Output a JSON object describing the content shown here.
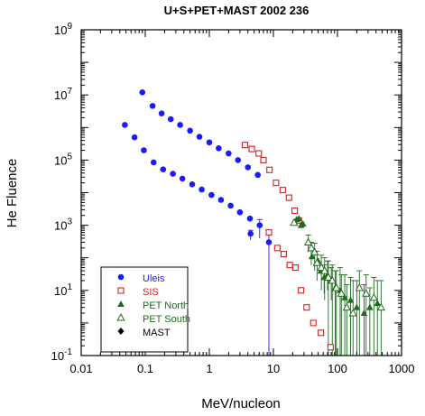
{
  "chart_data": {
    "type": "scatter",
    "title": "U+S+PET+MAST 2002 236",
    "xlabel": "MeV/nucleon",
    "ylabel": "He Fluence",
    "xscale": "log",
    "yscale": "log",
    "xlim": [
      0.01,
      1000
    ],
    "ylim": [
      0.1,
      1000000000
    ],
    "x_ticks": [
      {
        "v": 0.01,
        "label": "0.01"
      },
      {
        "v": 0.1,
        "label": "0.1"
      },
      {
        "v": 1,
        "label": "1"
      },
      {
        "v": 10,
        "label": "10"
      },
      {
        "v": 100,
        "label": "100"
      },
      {
        "v": 1000,
        "label": "1000"
      }
    ],
    "y_ticks": [
      {
        "v": 0.1,
        "base": "10",
        "exp": "-1"
      },
      {
        "v": 10,
        "base": "10",
        "exp": "1"
      },
      {
        "v": 1000,
        "base": "10",
        "exp": "3"
      },
      {
        "v": 100000,
        "base": "10",
        "exp": "5"
      },
      {
        "v": 10000000,
        "base": "10",
        "exp": "7"
      },
      {
        "v": 1000000000,
        "base": "10",
        "exp": "9"
      }
    ],
    "legend_position": "bottom-left",
    "series": [
      {
        "name": "Uleis",
        "color": "#1a1aff",
        "marker": "filled-circle",
        "points": [
          {
            "x": 0.09,
            "y": 12000000
          },
          {
            "x": 0.13,
            "y": 4600000
          },
          {
            "x": 0.18,
            "y": 2700000
          },
          {
            "x": 0.25,
            "y": 1800000
          },
          {
            "x": 0.35,
            "y": 1200000
          },
          {
            "x": 0.5,
            "y": 800000
          },
          {
            "x": 0.7,
            "y": 520000
          },
          {
            "x": 1.0,
            "y": 350000
          },
          {
            "x": 1.4,
            "y": 230000
          },
          {
            "x": 2.0,
            "y": 160000
          },
          {
            "x": 2.8,
            "y": 100000
          },
          {
            "x": 4.0,
            "y": 60000
          },
          {
            "x": 5.7,
            "y": 35000
          },
          {
            "x": 0.048,
            "y": 1200000
          },
          {
            "x": 0.068,
            "y": 500000
          },
          {
            "x": 0.095,
            "y": 200000
          },
          {
            "x": 0.135,
            "y": 85000
          },
          {
            "x": 0.19,
            "y": 52000
          },
          {
            "x": 0.27,
            "y": 38000
          },
          {
            "x": 0.38,
            "y": 27000
          },
          {
            "x": 0.54,
            "y": 18000
          },
          {
            "x": 0.76,
            "y": 12500
          },
          {
            "x": 1.08,
            "y": 8500
          },
          {
            "x": 1.52,
            "y": 6000
          },
          {
            "x": 2.15,
            "y": 4000
          },
          {
            "x": 3.0,
            "y": 2500
          },
          {
            "x": 4.3,
            "y": 1600
          },
          {
            "x": 4.4,
            "y": 550,
            "ylo": 350,
            "yhi": 700
          },
          {
            "x": 6.1,
            "y": 1000,
            "ylo": 400,
            "yhi": 1500
          },
          {
            "x": 8.5,
            "y": 300,
            "ylo": 0.1,
            "yhi": 700
          }
        ]
      },
      {
        "name": "SIS",
        "color": "#cc2222",
        "marker": "open-square",
        "points": [
          {
            "x": 3.6,
            "y": 290000
          },
          {
            "x": 4.6,
            "y": 220000
          },
          {
            "x": 5.9,
            "y": 160000
          },
          {
            "x": 7.0,
            "y": 100000
          },
          {
            "x": 8.7,
            "y": 50000
          },
          {
            "x": 11,
            "y": 20000
          },
          {
            "x": 14,
            "y": 12000
          },
          {
            "x": 17.5,
            "y": 7000
          },
          {
            "x": 21.5,
            "y": 2800
          },
          {
            "x": 25,
            "y": 1400
          },
          {
            "x": 8.5,
            "y": 600
          },
          {
            "x": 11.5,
            "y": 200
          },
          {
            "x": 14.5,
            "y": 130
          },
          {
            "x": 18,
            "y": 60
          },
          {
            "x": 22,
            "y": 50
          },
          {
            "x": 27,
            "y": 10
          },
          {
            "x": 33,
            "y": 3
          },
          {
            "x": 42,
            "y": 1.0
          },
          {
            "x": 55,
            "y": 0.5
          },
          {
            "x": 78,
            "y": 0.18
          }
        ]
      },
      {
        "name": "PET North",
        "color": "#1e6b1e",
        "marker": "filled-triangle",
        "points": [
          {
            "x": 23,
            "y": 1500
          },
          {
            "x": 25,
            "y": 1600
          },
          {
            "x": 27,
            "y": 1000
          },
          {
            "x": 29,
            "y": 1100
          },
          {
            "x": 40,
            "y": 110
          },
          {
            "x": 50,
            "y": 80
          },
          {
            "x": 55,
            "y": 40
          },
          {
            "x": 62,
            "y": 25,
            "ylo": 8,
            "yhi": 60
          },
          {
            "x": 70,
            "y": 30,
            "ylo": 10,
            "yhi": 80
          },
          {
            "x": 80,
            "y": 20,
            "ylo": 5,
            "yhi": 50
          },
          {
            "x": 92,
            "y": 12,
            "ylo": 0.1,
            "yhi": 40
          },
          {
            "x": 110,
            "y": 10,
            "ylo": 0.1,
            "yhi": 50
          },
          {
            "x": 130,
            "y": 6,
            "ylo": 0.1,
            "yhi": 30
          },
          {
            "x": 160,
            "y": 5,
            "ylo": 0.1,
            "yhi": 25
          },
          {
            "x": 200,
            "y": 3,
            "ylo": 0.1,
            "yhi": 20
          },
          {
            "x": 260,
            "y": 2,
            "ylo": 0.1,
            "yhi": 15
          },
          {
            "x": 320,
            "y": 3,
            "ylo": 0.1,
            "yhi": 12
          },
          {
            "x": 420,
            "y": 4,
            "ylo": 0.1,
            "yhi": 20
          }
        ]
      },
      {
        "name": "PET South",
        "color": "#1e6b1e",
        "marker": "open-triangle",
        "points": [
          {
            "x": 21,
            "y": 1200
          },
          {
            "x": 35,
            "y": 300,
            "ylo": 150,
            "yhi": 500
          },
          {
            "x": 39,
            "y": 200,
            "ylo": 60,
            "yhi": 300
          },
          {
            "x": 44,
            "y": 150,
            "ylo": 40,
            "yhi": 280
          },
          {
            "x": 48,
            "y": 70,
            "ylo": 20,
            "yhi": 160
          },
          {
            "x": 56,
            "y": 50,
            "ylo": 10,
            "yhi": 120
          },
          {
            "x": 63,
            "y": 40,
            "ylo": 5,
            "yhi": 100
          },
          {
            "x": 72,
            "y": 25,
            "ylo": 0.1,
            "yhi": 80
          },
          {
            "x": 83,
            "y": 20,
            "ylo": 0.1,
            "yhi": 60
          },
          {
            "x": 96,
            "y": 12,
            "ylo": 0.1,
            "yhi": 40
          },
          {
            "x": 115,
            "y": 8,
            "ylo": 0.1,
            "yhi": 30
          },
          {
            "x": 140,
            "y": 3,
            "ylo": 0.1,
            "yhi": 15
          },
          {
            "x": 175,
            "y": 2,
            "ylo": 0.1,
            "yhi": 20
          },
          {
            "x": 220,
            "y": 12,
            "ylo": 0.1,
            "yhi": 40
          },
          {
            "x": 280,
            "y": 8,
            "ylo": 0.1,
            "yhi": 30
          },
          {
            "x": 370,
            "y": 6,
            "ylo": 0.1,
            "yhi": 25
          },
          {
            "x": 480,
            "y": 3,
            "ylo": 0.1,
            "yhi": 20
          }
        ]
      },
      {
        "name": "MAST",
        "color": "#000000",
        "marker": "filled-diamond",
        "points": []
      }
    ]
  }
}
